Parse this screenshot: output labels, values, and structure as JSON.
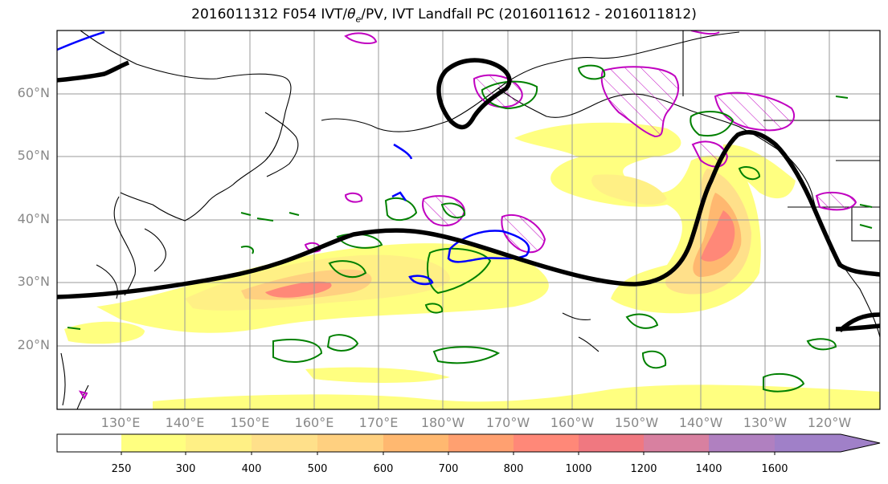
{
  "title_main": "2016011312 F054 IVT/",
  "title_theta": "θ",
  "title_theta_sub": "e",
  "title_rest": "/PV, IVT Landfall PC (2016011612 - 2016011812)",
  "map": {
    "lat_labels": [
      "60°N",
      "50°N",
      "40°N",
      "30°N",
      "20°N"
    ],
    "lon_labels": [
      "130°E",
      "140°E",
      "150°E",
      "160°E",
      "170°E",
      "180°W",
      "170°W",
      "160°W",
      "150°W",
      "140°W",
      "130°W",
      "120°W"
    ]
  },
  "colorbar": {
    "labels": [
      "250",
      "300",
      "400",
      "500",
      "600",
      "700",
      "800",
      "1000",
      "1200",
      "1400",
      "1600"
    ],
    "colors": [
      "#ffffff",
      "#ffff80",
      "#fff085",
      "#ffe08a",
      "#ffd080",
      "#ffb870",
      "#ffa070",
      "#ff8878",
      "#f07880",
      "#d880a0",
      "#b080c0",
      "#a080c8"
    ]
  },
  "colors": {
    "contour_black": "#000000",
    "pv_green": "#008000",
    "pv_magenta": "#c000c0",
    "theta_blue": "#0000ff"
  }
}
